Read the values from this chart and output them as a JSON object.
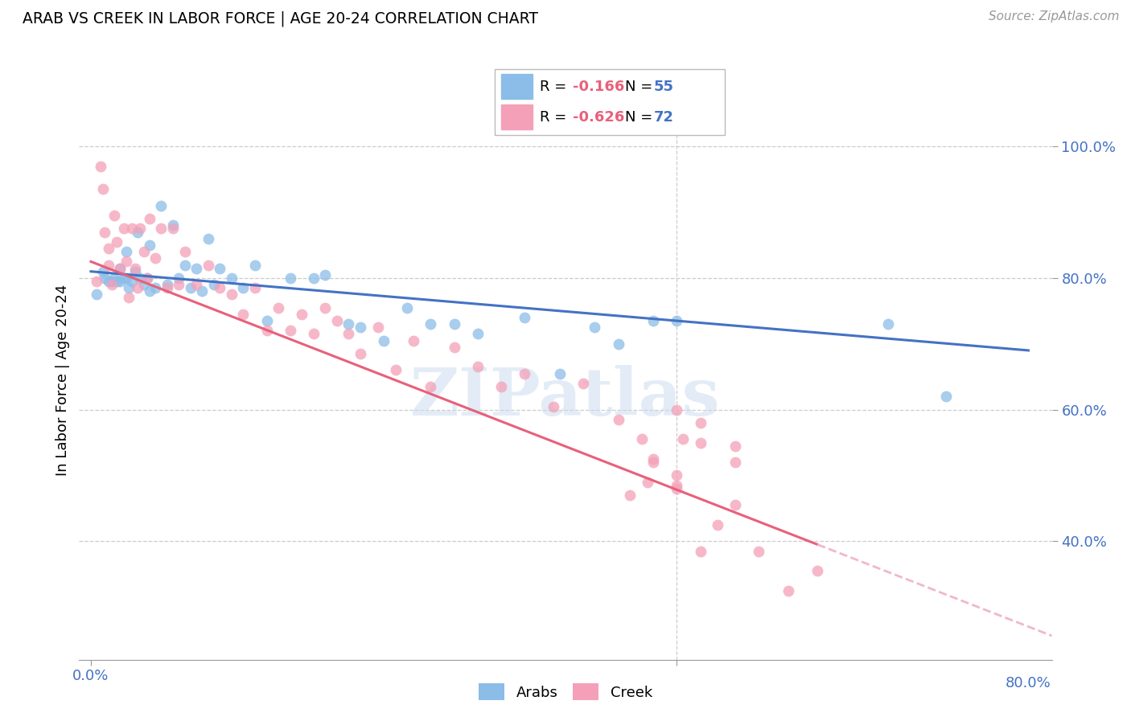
{
  "title": "ARAB VS CREEK IN LABOR FORCE | AGE 20-24 CORRELATION CHART",
  "source": "Source: ZipAtlas.com",
  "ylabel": "In Labor Force | Age 20-24",
  "xlim": [
    -0.01,
    0.82
  ],
  "ylim": [
    0.22,
    1.07
  ],
  "xticks": [
    0.0,
    0.5
  ],
  "xticklabels": [
    "0.0%",
    ""
  ],
  "x_right_label": "80.0%",
  "ytick_positions": [
    0.4,
    0.6,
    0.8,
    1.0
  ],
  "yticklabels": [
    "40.0%",
    "60.0%",
    "80.0%",
    "100.0%"
  ],
  "arab_color": "#8BBDE8",
  "creek_color": "#F4A0B8",
  "arab_line_color": "#4472C4",
  "creek_line_color": "#E8607A",
  "creek_dash_color": "#F0B8C8",
  "arab_R": -0.166,
  "arab_N": 55,
  "creek_R": -0.626,
  "creek_N": 72,
  "legend_R_color": "#E8607A",
  "legend_N_color": "#4472C4",
  "watermark_text": "ZIPatlas",
  "creek_line_solid_end": 0.62,
  "arab_scatter_x": [
    0.005,
    0.01,
    0.012,
    0.015,
    0.018,
    0.02,
    0.022,
    0.025,
    0.025,
    0.028,
    0.03,
    0.03,
    0.032,
    0.035,
    0.038,
    0.04,
    0.042,
    0.045,
    0.048,
    0.05,
    0.05,
    0.055,
    0.06,
    0.065,
    0.07,
    0.075,
    0.08,
    0.085,
    0.09,
    0.095,
    0.1,
    0.105,
    0.11,
    0.12,
    0.13,
    0.14,
    0.15,
    0.17,
    0.19,
    0.2,
    0.22,
    0.23,
    0.25,
    0.27,
    0.29,
    0.31,
    0.33,
    0.37,
    0.4,
    0.43,
    0.45,
    0.48,
    0.5,
    0.68,
    0.73
  ],
  "arab_scatter_y": [
    0.775,
    0.81,
    0.8,
    0.795,
    0.795,
    0.8,
    0.795,
    0.815,
    0.795,
    0.8,
    0.84,
    0.8,
    0.785,
    0.795,
    0.81,
    0.87,
    0.8,
    0.79,
    0.8,
    0.85,
    0.78,
    0.785,
    0.91,
    0.79,
    0.88,
    0.8,
    0.82,
    0.785,
    0.815,
    0.78,
    0.86,
    0.79,
    0.815,
    0.8,
    0.785,
    0.82,
    0.735,
    0.8,
    0.8,
    0.805,
    0.73,
    0.725,
    0.705,
    0.755,
    0.73,
    0.73,
    0.715,
    0.74,
    0.655,
    0.725,
    0.7,
    0.735,
    0.735,
    0.73,
    0.62
  ],
  "creek_scatter_x": [
    0.005,
    0.008,
    0.01,
    0.012,
    0.015,
    0.015,
    0.018,
    0.02,
    0.022,
    0.025,
    0.028,
    0.03,
    0.032,
    0.035,
    0.038,
    0.04,
    0.042,
    0.045,
    0.048,
    0.05,
    0.055,
    0.06,
    0.065,
    0.07,
    0.075,
    0.08,
    0.09,
    0.1,
    0.11,
    0.12,
    0.13,
    0.14,
    0.15,
    0.16,
    0.17,
    0.18,
    0.19,
    0.2,
    0.21,
    0.22,
    0.23,
    0.245,
    0.26,
    0.275,
    0.29,
    0.31,
    0.33,
    0.35,
    0.37,
    0.395,
    0.42,
    0.45,
    0.47,
    0.48,
    0.5,
    0.505,
    0.52,
    0.535,
    0.55,
    0.57,
    0.595,
    0.62,
    0.5,
    0.52,
    0.52,
    0.55,
    0.55,
    0.48,
    0.5,
    0.475,
    0.46,
    0.5
  ],
  "creek_scatter_y": [
    0.795,
    0.97,
    0.935,
    0.87,
    0.845,
    0.82,
    0.79,
    0.895,
    0.855,
    0.815,
    0.875,
    0.825,
    0.77,
    0.875,
    0.815,
    0.785,
    0.875,
    0.84,
    0.8,
    0.89,
    0.83,
    0.875,
    0.785,
    0.875,
    0.79,
    0.84,
    0.79,
    0.82,
    0.785,
    0.775,
    0.745,
    0.785,
    0.72,
    0.755,
    0.72,
    0.745,
    0.715,
    0.755,
    0.735,
    0.715,
    0.685,
    0.725,
    0.66,
    0.705,
    0.635,
    0.695,
    0.665,
    0.635,
    0.655,
    0.605,
    0.64,
    0.585,
    0.555,
    0.525,
    0.485,
    0.555,
    0.385,
    0.425,
    0.455,
    0.385,
    0.325,
    0.355,
    0.6,
    0.58,
    0.55,
    0.545,
    0.52,
    0.52,
    0.5,
    0.49,
    0.47,
    0.48
  ]
}
